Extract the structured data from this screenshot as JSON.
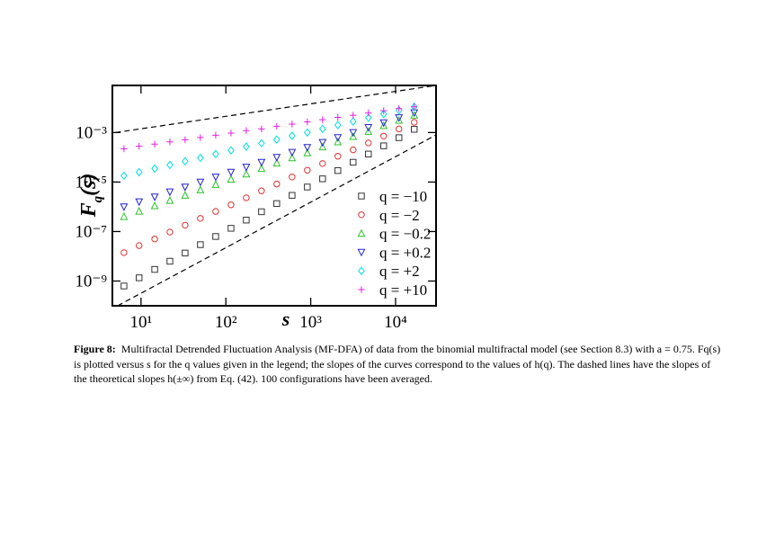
{
  "chart_data": {
    "type": "scatter",
    "xlabel": "s",
    "ylabel": [
      "F",
      "q",
      "(s)"
    ],
    "log_x": true,
    "log_y": true,
    "xlim": [
      4.6,
      30000
    ],
    "ylim": [
      1e-10,
      0.08
    ],
    "xticks": [
      {
        "value": 10,
        "label": "10¹"
      },
      {
        "value": 100,
        "label": "10²"
      },
      {
        "value": 1000,
        "label": "10³"
      },
      {
        "value": 10000,
        "label": "10⁴"
      }
    ],
    "yticks": [
      {
        "value": 1e-09,
        "label": "10⁻⁹"
      },
      {
        "value": 1e-07,
        "label": "10⁻⁷"
      },
      {
        "value": 1e-05,
        "label": "10⁻⁵"
      },
      {
        "value": 0.001,
        "label": "10⁻³"
      }
    ],
    "legend": "lower right",
    "x": [
      6.3,
      9.5,
      14.5,
      21.9,
      33.1,
      50.1,
      75.9,
      115,
      174,
      263,
      398,
      603,
      912,
      1380,
      2089,
      3162,
      4786,
      7244,
      10965,
      16596
    ],
    "series": [
      {
        "name": "q = −10",
        "color": "#333333",
        "marker": "square",
        "values": [
          6.3e-10,
          1.35e-09,
          2.95e-09,
          6.3e-09,
          1.35e-08,
          2.95e-08,
          6.3e-08,
          1.35e-07,
          2.9e-07,
          6.3e-07,
          1.35e-06,
          2.9e-06,
          6.3e-06,
          1.35e-05,
          2.9e-05,
          6.3e-05,
          0.000135,
          0.00029,
          0.00062,
          0.00135
        ]
      },
      {
        "name": "q = −2",
        "color": "#e03030",
        "marker": "circle",
        "values": [
          1.4e-08,
          2.7e-08,
          5e-08,
          9.5e-08,
          1.8e-07,
          3.4e-07,
          6.5e-07,
          1.2e-06,
          2.3e-06,
          4.4e-06,
          8.3e-06,
          1.6e-05,
          3e-05,
          5.6e-05,
          0.00011,
          0.0002,
          0.00038,
          0.00072,
          0.0014,
          0.0026
        ]
      },
      {
        "name": "q = −0.2",
        "color": "#2ec22e",
        "marker": "triangle-up",
        "values": [
          4e-07,
          6.6e-07,
          1.1e-06,
          1.8e-06,
          2.9e-06,
          4.8e-06,
          7.9e-06,
          1.3e-05,
          2.1e-05,
          3.5e-05,
          5.8e-05,
          9.5e-05,
          0.00015,
          0.00026,
          0.00042,
          0.00069,
          0.0011,
          0.0019,
          0.0031,
          0.005
        ]
      },
      {
        "name": "q = +0.2",
        "color": "#2424d0",
        "marker": "triangle-down",
        "values": [
          1e-06,
          1.6e-06,
          2.5e-06,
          4e-06,
          6.3e-06,
          1e-05,
          1.6e-05,
          2.5e-05,
          4e-05,
          6.3e-05,
          0.0001,
          0.00016,
          0.00025,
          0.0004,
          0.00063,
          0.001,
          0.0016,
          0.0025,
          0.004,
          0.0063
        ]
      },
      {
        "name": "q = +2",
        "color": "#00dede",
        "marker": "diamond",
        "values": [
          1.8e-05,
          2.5e-05,
          3.5e-05,
          4.9e-05,
          6.9e-05,
          9.5e-05,
          0.000135,
          0.00019,
          0.00027,
          0.00037,
          0.00052,
          0.00074,
          0.001,
          0.0014,
          0.002,
          0.0028,
          0.004,
          0.0056,
          0.0079,
          0.011
        ]
      },
      {
        "name": "q = +10",
        "color": "#e020e0",
        "marker": "plus",
        "values": [
          0.00022,
          0.00028,
          0.00034,
          0.00042,
          0.00051,
          0.00063,
          0.00078,
          0.00095,
          0.0012,
          0.0014,
          0.0018,
          0.0022,
          0.0027,
          0.0033,
          0.0041,
          0.005,
          0.0062,
          0.0076,
          0.0093,
          0.011
        ]
      }
    ],
    "reference_lines": [
      {
        "x": [
          5,
          30000
        ],
        "values": [
          0.001,
          0.08
        ]
      },
      {
        "x": [
          5.3,
          30000
        ],
        "values": [
          1e-10,
          0.0008
        ]
      }
    ]
  },
  "caption": {
    "label": "Figure 8:",
    "text": "Multifractal Detrended Fluctuation Analysis (MF-DFA) of data from the binomial multifractal model (see Section 8.3) with a = 0.75. Fq(s) is plotted versus s for the q values given in the legend; the slopes of the curves correspond to the values of h(q). The dashed lines have the slopes of the theoretical slopes h(±∞) from Eq. (42). 100 configurations have been averaged."
  }
}
